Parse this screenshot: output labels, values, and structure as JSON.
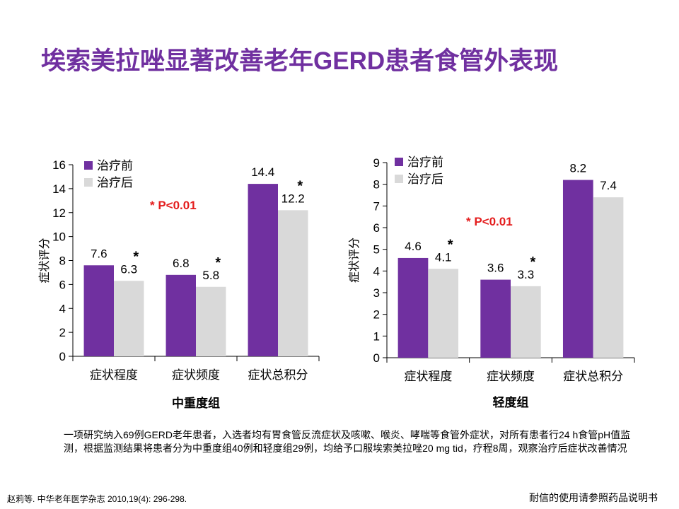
{
  "title": "埃索美拉唑显著改善老年GERD患者食管外表现",
  "colors": {
    "title": "#7030A0",
    "before": "#7030A0",
    "after": "#D9D9D9",
    "pvalue": "#E41E1E"
  },
  "chart_data": [
    {
      "type": "bar",
      "xlabel": "中重度组",
      "ylabel": "症状评分",
      "categories": [
        "症状程度",
        "症状频度",
        "症状总积分"
      ],
      "series": [
        {
          "name": "治疗前",
          "values": [
            7.6,
            6.8,
            14.4
          ]
        },
        {
          "name": "治疗后",
          "values": [
            6.3,
            5.8,
            12.2
          ]
        }
      ],
      "significant": [
        true,
        true,
        true
      ],
      "significance_marker": "*",
      "annotation": "* P<0.01",
      "ylim": [
        0,
        16
      ],
      "yticks": [
        0,
        2,
        4,
        6,
        8,
        10,
        12,
        14,
        16
      ],
      "legend": "top-left",
      "grid": false
    },
    {
      "type": "bar",
      "xlabel": "轻度组",
      "ylabel": "症状评分",
      "categories": [
        "症状程度",
        "症状频度",
        "症状总积分"
      ],
      "series": [
        {
          "name": "治疗前",
          "values": [
            4.6,
            3.6,
            8.2
          ]
        },
        {
          "name": "治疗后",
          "values": [
            4.1,
            3.3,
            7.4
          ]
        }
      ],
      "significant": [
        true,
        true,
        false
      ],
      "significance_marker": "*",
      "annotation": "* P<0.01",
      "ylim": [
        0,
        9
      ],
      "yticks": [
        0,
        1,
        2,
        3,
        4,
        5,
        6,
        7,
        8,
        9
      ],
      "legend": "top-left",
      "grid": false
    }
  ],
  "description": "一项研究纳入69例GERD老年患者，入选者均有胃食管反流症状及咳嗽、喉炎、哮喘等食管外症状，对所有患者行24 h食管pH值监测，根据监测结果将患者分为中重度组40例和轻度组29例，均给予口服埃索美拉唑20 mg tid，疗程8周，观察治疗后症状改善情况",
  "reference": "赵莉等. 中华老年医学杂志 2010,19(4): 296-298.",
  "footer_note": "耐信的使用请参照药品说明书"
}
